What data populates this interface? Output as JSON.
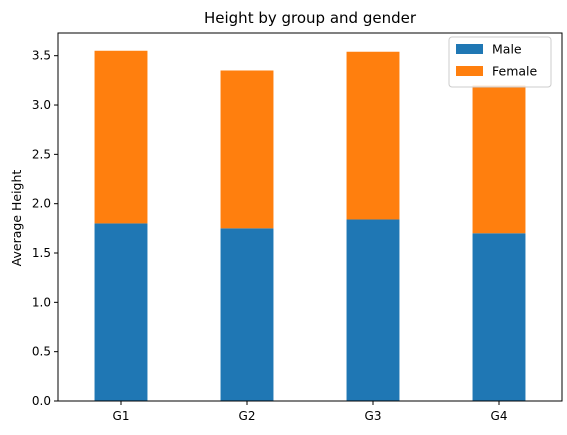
{
  "chart_data": {
    "type": "bar",
    "stacked": true,
    "title": "Height by group and gender",
    "xlabel": "",
    "ylabel": "Average Height",
    "categories": [
      "G1",
      "G2",
      "G3",
      "G4"
    ],
    "series": [
      {
        "name": "Male",
        "color": "#1f77b4",
        "values": [
          1.8,
          1.75,
          1.84,
          1.7
        ]
      },
      {
        "name": "Female",
        "color": "#ff7f0e",
        "values": [
          1.75,
          1.6,
          1.7,
          1.5
        ]
      }
    ],
    "ylim": [
      0,
      3.73
    ],
    "yticks": [
      "0.0",
      "0.5",
      "1.0",
      "1.5",
      "2.0",
      "2.5",
      "3.0",
      "3.5"
    ],
    "grid": false,
    "legend_position": "top-right"
  }
}
